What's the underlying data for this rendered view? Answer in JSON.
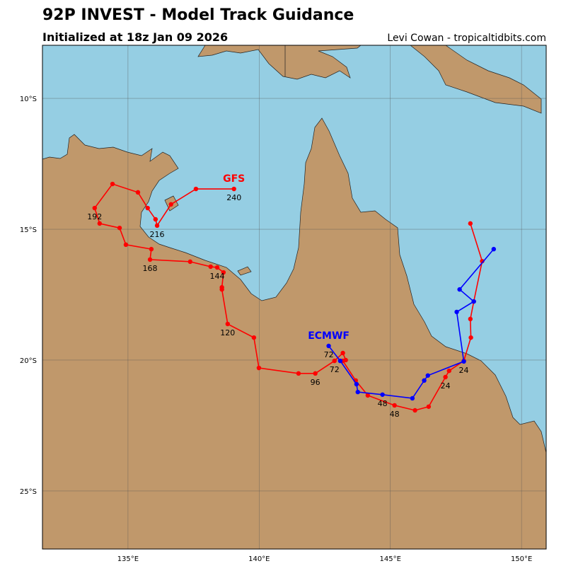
{
  "header": {
    "title": "92P INVEST - Model Track Guidance",
    "subtitle": "Initialized at 18z Jan 09 2026",
    "credit": "Levi Cowan - tropicaltidbits.com"
  },
  "chart_data": {
    "type": "map",
    "xlim": [
      131.74,
      150.94
    ],
    "ylim": [
      -27.22,
      -7.97
    ],
    "xticks": [
      {
        "value": 135,
        "label": "135°E"
      },
      {
        "value": 140,
        "label": "140°E"
      },
      {
        "value": 145,
        "label": "145°E"
      },
      {
        "value": 150,
        "label": "150°E"
      }
    ],
    "yticks": [
      {
        "value": -10,
        "label": "10°S"
      },
      {
        "value": -15,
        "label": "15°S"
      },
      {
        "value": -20,
        "label": "20°S"
      },
      {
        "value": -25,
        "label": "25°S"
      }
    ],
    "grid": true,
    "series": [
      {
        "name": "GFS",
        "color": "#ff0000",
        "x": [
          148.05,
          148.5,
          148.18,
          148.05,
          148.07,
          147.8,
          147.24,
          147.1,
          146.46,
          145.94,
          145.16,
          144.14,
          143.68,
          143.19,
          143.3,
          143.19,
          142.87,
          142.14,
          141.5,
          139.99,
          139.8,
          138.8,
          138.58,
          138.58,
          138.64,
          138.4,
          138.15,
          137.37,
          135.84,
          135.89,
          134.92,
          134.68,
          133.92,
          133.73,
          134.41,
          135.38,
          135.75,
          136.05,
          136.11,
          136.64,
          137.59,
          139.04
        ],
        "y": [
          -14.78,
          -16.22,
          -17.76,
          -18.43,
          -19.14,
          -20.03,
          -20.41,
          -20.65,
          -21.78,
          -21.92,
          -21.73,
          -21.35,
          -20.78,
          -20.03,
          -20.0,
          -19.73,
          -20.03,
          -20.51,
          -20.51,
          -20.3,
          -19.14,
          -18.62,
          -17.3,
          -17.22,
          -16.65,
          -16.46,
          -16.43,
          -16.24,
          -16.16,
          -15.76,
          -15.59,
          -14.95,
          -14.78,
          -14.19,
          -13.27,
          -13.59,
          -14.19,
          -14.62,
          -14.86,
          -14.05,
          -13.46,
          -13.46
        ],
        "point_labels": [
          null,
          null,
          null,
          null,
          null,
          null,
          null,
          "24",
          null,
          null,
          "48",
          null,
          null,
          null,
          null,
          null,
          "72",
          "96",
          null,
          null,
          null,
          "120",
          null,
          null,
          null,
          "144",
          null,
          null,
          "168",
          null,
          null,
          null,
          null,
          "192",
          null,
          null,
          null,
          null,
          "216",
          null,
          null,
          "240"
        ]
      },
      {
        "name": "ECMWF",
        "color": "#0000ff",
        "x": [
          148.94,
          147.64,
          148.18,
          147.53,
          147.8,
          146.43,
          146.29,
          145.84,
          144.7,
          143.76,
          143.71,
          143.09,
          142.65
        ],
        "y": [
          -15.76,
          -17.3,
          -17.76,
          -18.16,
          -20.05,
          -20.59,
          -20.78,
          -21.46,
          -21.32,
          -21.22,
          -20.92,
          -20.03,
          -19.46
        ],
        "point_labels": [
          null,
          null,
          null,
          null,
          "24",
          null,
          null,
          null,
          "48",
          null,
          null,
          null,
          "72"
        ]
      }
    ]
  }
}
